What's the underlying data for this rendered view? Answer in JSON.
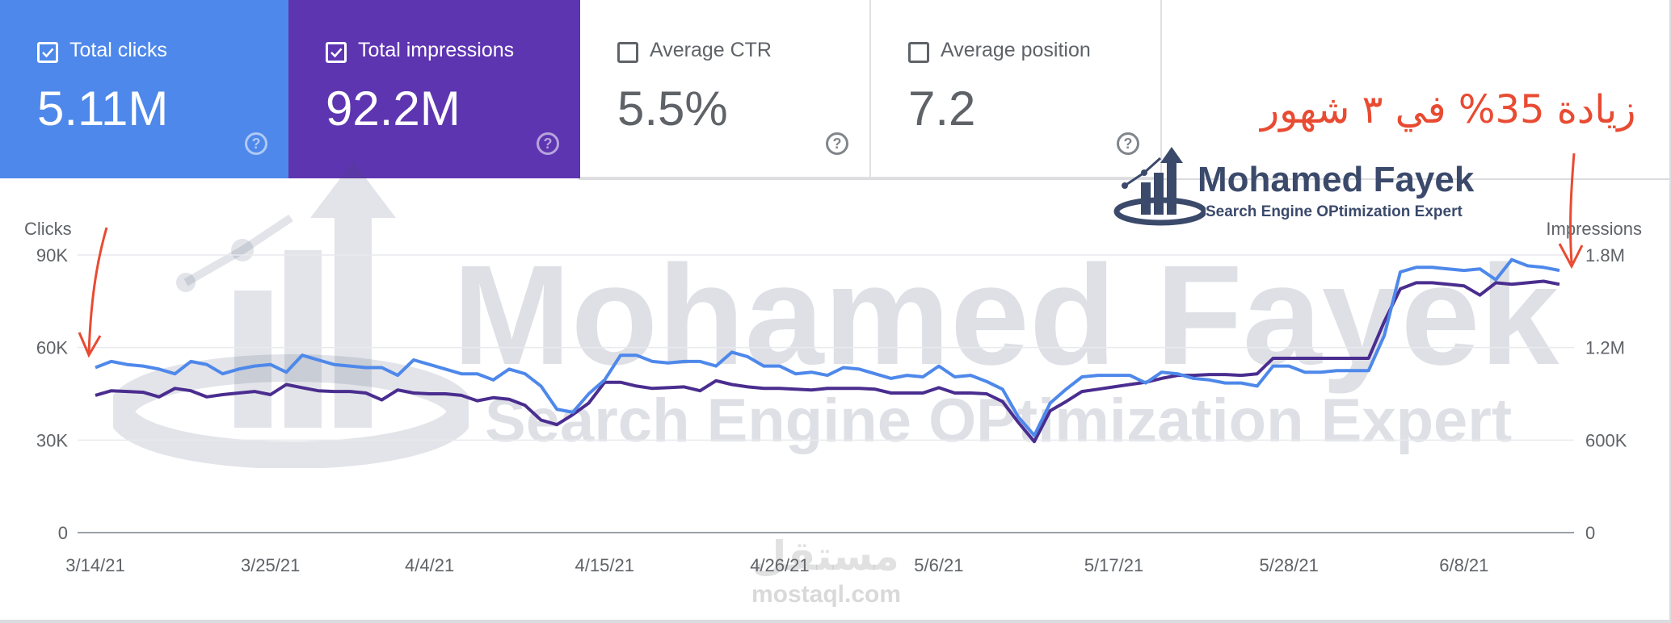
{
  "metrics": [
    {
      "label": "Total clicks",
      "value": "5.11M",
      "checked": true,
      "color": "#4e88ea"
    },
    {
      "label": "Total impressions",
      "value": "92.2M",
      "checked": true,
      "color": "#5e35b1"
    },
    {
      "label": "Average CTR",
      "value": "5.5%",
      "checked": false
    },
    {
      "label": "Average position",
      "value": "7.2",
      "checked": false
    }
  ],
  "annotation": {
    "text": "زيادة 35%  في ٣ شهور",
    "color": "#e84b32"
  },
  "logo": {
    "name": "Mohamed Fayek",
    "tagline": "Search Engine OPtimization Expert"
  },
  "watermark": {
    "name": "Mohamed Fayek",
    "tagline": "Search Engine OPtimization Expert",
    "site": "mostaql.com",
    "site_ar": "مستقل"
  },
  "chart_data": {
    "type": "line",
    "y_left_label": "Clicks",
    "y_right_label": "Impressions",
    "y_left_ticks": [
      "0",
      "30K",
      "60K",
      "90K"
    ],
    "y_left_range": [
      0,
      90000
    ],
    "y_right_ticks": [
      "0",
      "600K",
      "1.2M",
      "1.8M"
    ],
    "y_right_range": [
      0,
      1800000
    ],
    "x_tick_labels": [
      "3/14/21",
      "3/25/21",
      "4/4/21",
      "4/15/21",
      "4/26/21",
      "5/6/21",
      "5/17/21",
      "5/28/21",
      "6/8/21"
    ],
    "x_tick_indices": [
      0,
      11,
      21,
      32,
      43,
      53,
      64,
      75,
      86
    ],
    "grid": true,
    "series": [
      {
        "name": "Total clicks",
        "axis": "left",
        "color": "#4e88ea",
        "values": [
          53500,
          55500,
          54500,
          54000,
          53000,
          51500,
          55500,
          54500,
          51500,
          53000,
          54000,
          54500,
          52000,
          57500,
          56000,
          54500,
          54000,
          53500,
          53500,
          51000,
          56000,
          54500,
          53000,
          51500,
          51500,
          49500,
          53000,
          51500,
          47500,
          40000,
          39000,
          45000,
          49500,
          57500,
          57500,
          55500,
          55000,
          55500,
          55500,
          54000,
          58500,
          57000,
          54000,
          54000,
          51500,
          52000,
          51000,
          53500,
          53000,
          51500,
          50000,
          51000,
          50500,
          54000,
          50500,
          51000,
          49000,
          46500,
          37500,
          31500,
          42000,
          46500,
          50500,
          51000,
          51000,
          51000,
          48500,
          52000,
          51500,
          50000,
          49500,
          48500,
          48500,
          47500,
          54000,
          54000,
          52000,
          52000,
          52500,
          52500,
          52500,
          64000,
          84500,
          86000,
          86000,
          85500,
          85000,
          85500,
          82000,
          88500,
          86500,
          86000,
          85000
        ]
      },
      {
        "name": "Total impressions",
        "axis": "right",
        "color": "#4a2d8f",
        "values": [
          890000,
          920000,
          915000,
          910000,
          880000,
          935000,
          920000,
          880000,
          895000,
          905000,
          915000,
          895000,
          960000,
          940000,
          920000,
          915000,
          915000,
          905000,
          860000,
          925000,
          905000,
          900000,
          900000,
          890000,
          855000,
          875000,
          865000,
          825000,
          730000,
          700000,
          765000,
          840000,
          975000,
          975000,
          950000,
          935000,
          940000,
          945000,
          920000,
          985000,
          960000,
          945000,
          935000,
          935000,
          930000,
          925000,
          935000,
          935000,
          935000,
          930000,
          905000,
          905000,
          905000,
          940000,
          905000,
          905000,
          900000,
          850000,
          715000,
          590000,
          790000,
          850000,
          915000,
          930000,
          945000,
          960000,
          975000,
          1000000,
          1020000,
          1020000,
          1025000,
          1025000,
          1020000,
          1030000,
          1130000,
          1130000,
          1130000,
          1130000,
          1130000,
          1130000,
          1130000,
          1370000,
          1580000,
          1620000,
          1620000,
          1610000,
          1600000,
          1540000,
          1620000,
          1610000,
          1620000,
          1630000,
          1610000
        ]
      }
    ]
  }
}
